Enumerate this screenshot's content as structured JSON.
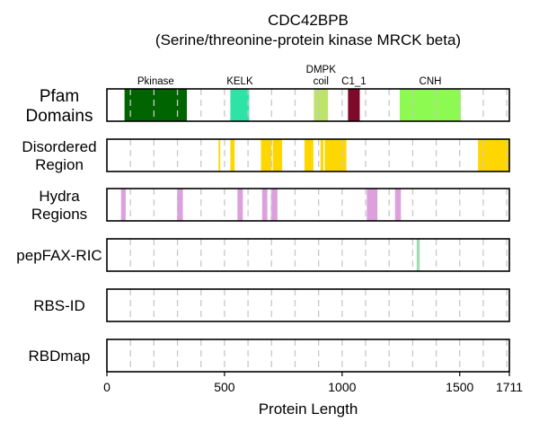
{
  "chart_data": {
    "type": "track",
    "title": "CDC42BPB",
    "subtitle": "(Serine/threonine-protein kinase MRCK beta)",
    "xlabel": "Protein Length",
    "xlim": [
      0,
      1711
    ],
    "xticks": [
      "0",
      "500",
      "1000",
      "1500",
      "1711"
    ],
    "xtick_values": [
      0,
      500,
      1000,
      1500,
      1711
    ],
    "grid_values": [
      100,
      200,
      300,
      400,
      500,
      600,
      700,
      800,
      900,
      1000,
      1100,
      1200,
      1300,
      1400,
      1500,
      1600,
      1700
    ],
    "tracks": [
      {
        "name": [
          "Pfam",
          "Domains"
        ],
        "segments": [
          {
            "label": [
              "Pkinase"
            ],
            "start": 75,
            "end": 340,
            "color": "#006400"
          },
          {
            "label": [
              "KELK"
            ],
            "start": 525,
            "end": 605,
            "color": "#2de3a5"
          },
          {
            "label": [
              "DMPK",
              "coil"
            ],
            "start": 880,
            "end": 940,
            "color": "#bde36b"
          },
          {
            "label": [
              "C1_1"
            ],
            "start": 1025,
            "end": 1075,
            "color": "#7d0a2a"
          },
          {
            "label": [
              "CNH"
            ],
            "start": 1245,
            "end": 1505,
            "color": "#8cfa50"
          }
        ]
      },
      {
        "name": [
          "Disordered",
          "Region"
        ],
        "segments": [
          {
            "start": 475,
            "end": 482,
            "color": "#ffd700"
          },
          {
            "start": 525,
            "end": 543,
            "color": "#ffd700"
          },
          {
            "start": 655,
            "end": 700,
            "color": "#ffd700"
          },
          {
            "start": 705,
            "end": 745,
            "color": "#ffd700"
          },
          {
            "start": 840,
            "end": 878,
            "color": "#ffd700"
          },
          {
            "start": 908,
            "end": 920,
            "color": "#ffd700"
          },
          {
            "start": 926,
            "end": 1018,
            "color": "#ffd700"
          },
          {
            "start": 1578,
            "end": 1711,
            "color": "#ffd700"
          }
        ]
      },
      {
        "name": [
          "Hydra",
          "Regions"
        ],
        "segments": [
          {
            "start": 60,
            "end": 80,
            "color": "#dda0dd"
          },
          {
            "start": 298,
            "end": 323,
            "color": "#dda0dd"
          },
          {
            "start": 555,
            "end": 578,
            "color": "#dda0dd"
          },
          {
            "start": 660,
            "end": 682,
            "color": "#dda0dd"
          },
          {
            "start": 697,
            "end": 725,
            "color": "#dda0dd"
          },
          {
            "start": 1105,
            "end": 1150,
            "color": "#dda0dd"
          },
          {
            "start": 1225,
            "end": 1250,
            "color": "#dda0dd"
          }
        ]
      },
      {
        "name": [
          "pepFAX-RIC"
        ],
        "segments": [
          {
            "start": 1317,
            "end": 1330,
            "color": "#a0dcb4"
          }
        ]
      },
      {
        "name": [
          "RBS-ID"
        ],
        "segments": []
      },
      {
        "name": [
          "RBDmap"
        ],
        "segments": []
      }
    ]
  }
}
